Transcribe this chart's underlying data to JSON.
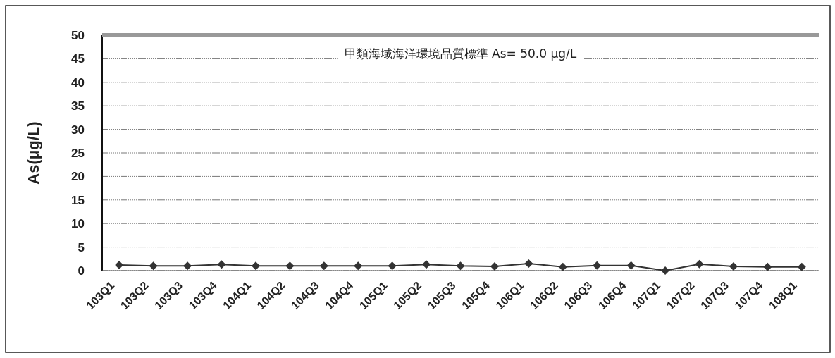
{
  "chart_data": {
    "type": "line",
    "ylabel": "As(μg/L)",
    "categories": [
      "103Q1",
      "103Q2",
      "103Q3",
      "103Q4",
      "104Q1",
      "104Q2",
      "104Q3",
      "104Q4",
      "105Q1",
      "105Q2",
      "105Q3",
      "105Q4",
      "106Q1",
      "106Q2",
      "106Q3",
      "106Q4",
      "107Q1",
      "107Q2",
      "107Q3",
      "107Q4",
      "108Q1"
    ],
    "series": [
      {
        "color": "#333333",
        "values": [
          1.2,
          1.0,
          1.0,
          1.3,
          1.0,
          1.0,
          1.0,
          1.0,
          1.0,
          1.3,
          1.0,
          0.9,
          1.5,
          0.8,
          1.1,
          1.1,
          0,
          1.4,
          0.9,
          0.8,
          0.8
        ]
      }
    ],
    "ylim": [
      0,
      50
    ],
    "yticks": [
      0,
      5,
      10,
      15,
      20,
      25,
      30,
      35,
      40,
      45,
      50
    ],
    "grid": "y",
    "marker": "diamond",
    "ref_lines": [
      {
        "axis": "y",
        "value": 50,
        "label": "甲類海域海洋環境品質標準 As= 50.0 μg/L",
        "color": "#999999"
      }
    ]
  }
}
